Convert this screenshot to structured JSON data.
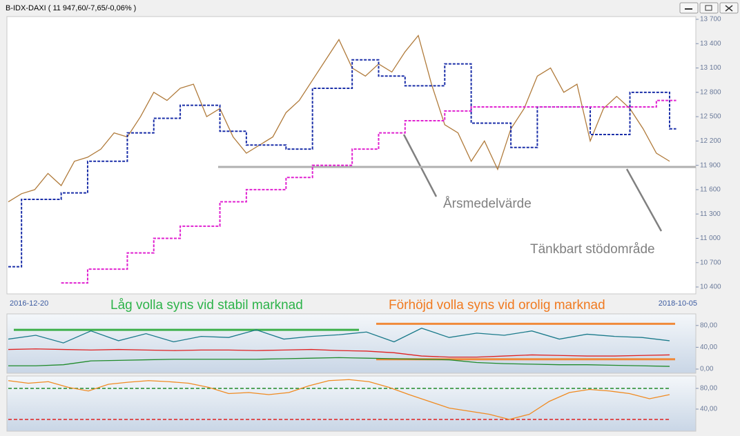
{
  "window": {
    "title": "B-IDX-DAXI ( 11 947,60/-7,65/-0,06% )"
  },
  "chart_data": [
    {
      "type": "line",
      "ylim": [
        10400,
        13700
      ],
      "yticks": [
        {
          "value": 10400,
          "label": "10 400"
        },
        {
          "value": 10700,
          "label": "10 700"
        },
        {
          "value": 11000,
          "label": "11 000"
        },
        {
          "value": 11300,
          "label": "11 300"
        },
        {
          "value": 11600,
          "label": "11 600"
        },
        {
          "value": 11900,
          "label": "11 900"
        },
        {
          "value": 12200,
          "label": "12 200"
        },
        {
          "value": 12500,
          "label": "12 500"
        },
        {
          "value": 12800,
          "label": "12 800"
        },
        {
          "value": 13100,
          "label": "13 100"
        },
        {
          "value": 13400,
          "label": "13 400"
        },
        {
          "value": 13700,
          "label": "13 700"
        }
      ],
      "x_labels": [
        "2016-12-20",
        "2018-10-05"
      ],
      "series": [
        {
          "color": "#b07a3a",
          "step": false,
          "values": [
            11450,
            11550,
            11600,
            11800,
            11650,
            11950,
            12000,
            12100,
            12300,
            12250,
            12500,
            12800,
            12700,
            12850,
            12900,
            12500,
            12600,
            12250,
            12050,
            12150,
            12250,
            12550,
            12700,
            12950,
            13200,
            13450,
            13100,
            13000,
            13150,
            13050,
            13300,
            13500,
            12900,
            12400,
            12300,
            11950,
            12200,
            11850,
            12350,
            12600,
            13000,
            13100,
            12800,
            12900,
            12200,
            12600,
            12750,
            12600,
            12350,
            12050,
            11950
          ]
        },
        {
          "color": "#1a2ea8",
          "step": true,
          "values": [
            10650,
            11480,
            11480,
            11480,
            11560,
            11560,
            11950,
            11950,
            11950,
            12300,
            12300,
            12480,
            12480,
            12640,
            12640,
            12640,
            12320,
            12320,
            12150,
            12150,
            12150,
            12100,
            12100,
            12850,
            12850,
            12850,
            13200,
            13200,
            13000,
            13000,
            12880,
            12880,
            12880,
            13150,
            13150,
            12420,
            12420,
            12420,
            12120,
            12120,
            12620,
            12620,
            12620,
            12620,
            12280,
            12280,
            12280,
            12800,
            12800,
            12800,
            12350
          ]
        },
        {
          "color": "#e020d0",
          "step": true,
          "values": [
            null,
            null,
            null,
            null,
            10450,
            10450,
            10620,
            10620,
            10620,
            10820,
            10820,
            11000,
            11000,
            11150,
            11150,
            11150,
            11450,
            11450,
            11600,
            11600,
            11600,
            11750,
            11750,
            11900,
            11900,
            11900,
            12100,
            12100,
            12300,
            12300,
            12450,
            12450,
            12450,
            12570,
            12570,
            12620,
            12620,
            12620,
            12620,
            12620,
            12620,
            12620,
            12620,
            12620,
            12620,
            12620,
            12620,
            12620,
            12620,
            12700,
            12700
          ]
        }
      ],
      "hline": {
        "value": 11880,
        "color": "#b0b0b0"
      },
      "annotations": [
        "Årsmedelvärde",
        "Tänkbart stödområde"
      ]
    },
    {
      "type": "line",
      "ylim": [
        0,
        100
      ],
      "yticks": [
        {
          "value": 0,
          "label": "0,00"
        },
        {
          "value": 40,
          "label": "40,00"
        },
        {
          "value": 80,
          "label": "80,00"
        }
      ],
      "series": [
        {
          "color": "#1a7a8a",
          "values": [
            55,
            62,
            48,
            70,
            52,
            65,
            50,
            60,
            58,
            72,
            55,
            60,
            63,
            68,
            50,
            75,
            58,
            66,
            62,
            70,
            55,
            64,
            60,
            58,
            52
          ]
        },
        {
          "color": "#e02020",
          "values": [
            36,
            37,
            36,
            35,
            36,
            35,
            34,
            35,
            35,
            34,
            35,
            36,
            34,
            33,
            30,
            24,
            22,
            22,
            24,
            26,
            25,
            24,
            24,
            25,
            26
          ]
        },
        {
          "color": "#1f8a2a",
          "values": [
            6,
            6,
            8,
            15,
            16,
            17,
            18,
            18,
            18,
            18,
            19,
            20,
            21,
            20,
            19,
            18,
            17,
            12,
            10,
            9,
            8,
            8,
            7,
            6,
            5
          ]
        }
      ],
      "guides": [
        {
          "value": 72,
          "color": "#3cb04a",
          "side": "left"
        },
        {
          "value": 83,
          "color": "#f08a3a",
          "side": "right"
        },
        {
          "value": 18,
          "color": "#f08a3a",
          "side": "right"
        }
      ],
      "annotations": [
        {
          "text": "Låg volla syns vid stabil marknad",
          "color": "#2db34a"
        },
        {
          "text": "Förhöjd volla syns vid orolig marknad",
          "color": "#f07a20"
        }
      ]
    },
    {
      "type": "line",
      "ylim": [
        0,
        104
      ],
      "yticks": [
        {
          "value": 40,
          "label": "40,00"
        },
        {
          "value": 80,
          "label": "80,00"
        }
      ],
      "series": [
        {
          "color": "#f08a20",
          "values": [
            95,
            90,
            93,
            82,
            75,
            88,
            92,
            95,
            93,
            90,
            82,
            70,
            72,
            68,
            72,
            85,
            95,
            97,
            93,
            82,
            68,
            55,
            42,
            36,
            30,
            20,
            30,
            55,
            72,
            78,
            75,
            70,
            60,
            68
          ]
        }
      ],
      "levels": [
        {
          "value": 80,
          "color": "#1f8a2a"
        },
        {
          "value": 20,
          "color": "#e02020"
        }
      ]
    }
  ]
}
